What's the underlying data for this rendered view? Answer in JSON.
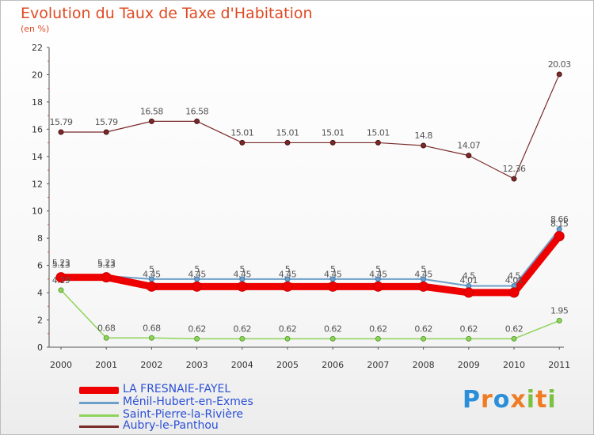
{
  "header": {
    "title": "Evolution du Taux de Taxe d'Habitation",
    "subtitle": "(en %)"
  },
  "brand": {
    "text": "Proxiti",
    "colors": [
      "#2a8fd8",
      "#ef7b22",
      "#2a8fd8",
      "#ef7b22",
      "#7cc242",
      "#ef7b22",
      "#7cc242"
    ]
  },
  "chart_data": {
    "type": "line",
    "x": [
      "2000",
      "2001",
      "2002",
      "2003",
      "2004",
      "2005",
      "2006",
      "2007",
      "2008",
      "2009",
      "2010",
      "2011"
    ],
    "ylim": [
      0,
      22
    ],
    "yticks": [
      0,
      2,
      4,
      6,
      8,
      10,
      12,
      14,
      16,
      18,
      20,
      22
    ],
    "grid": false,
    "legend_position": "bottom-left",
    "series": [
      {
        "name": "LA FRESNAIE-FAYEL",
        "color": "#ee0000",
        "values": [
          5.13,
          5.13,
          4.45,
          4.45,
          4.45,
          4.45,
          4.45,
          4.45,
          4.45,
          4.01,
          4.01,
          8.15
        ],
        "labels": [
          "5.13",
          "5.13",
          "4.45",
          "4.45",
          "4.45",
          "4.45",
          "4.45",
          "4.45",
          "4.45",
          "4.01",
          "4.01",
          "8.15"
        ]
      },
      {
        "name": "Ménil-Hubert-en-Exmes",
        "color": "#6e9fc8",
        "values": [
          5.23,
          5.23,
          5,
          5,
          5,
          5,
          5,
          5,
          5,
          4.5,
          4.5,
          8.66
        ],
        "labels": [
          "5.23",
          "5.23",
          "5",
          "5",
          "5",
          "5",
          "5",
          "5",
          "5",
          "4.5",
          "4.5",
          "8.66"
        ]
      },
      {
        "name": "Saint-Pierre-la-Rivière",
        "color": "#8fd45a",
        "values": [
          4.19,
          0.68,
          0.68,
          0.62,
          0.62,
          0.62,
          0.62,
          0.62,
          0.62,
          0.62,
          0.62,
          1.95
        ],
        "labels": [
          "4.19",
          "0.68",
          "0.68",
          "0.62",
          "0.62",
          "0.62",
          "0.62",
          "0.62",
          "0.62",
          "0.62",
          "0.62",
          "1.95"
        ]
      },
      {
        "name": "Aubry-le-Panthou",
        "color": "#7a2a2a",
        "values": [
          15.79,
          15.79,
          16.58,
          16.58,
          15.01,
          15.01,
          15.01,
          15.01,
          14.8,
          14.07,
          12.36,
          20.03
        ],
        "labels": [
          "15.79",
          "15.79",
          "16.58",
          "16.58",
          "15.01",
          "15.01",
          "15.01",
          "15.01",
          "14.8",
          "14.07",
          "12.36",
          "20.03"
        ]
      }
    ]
  }
}
